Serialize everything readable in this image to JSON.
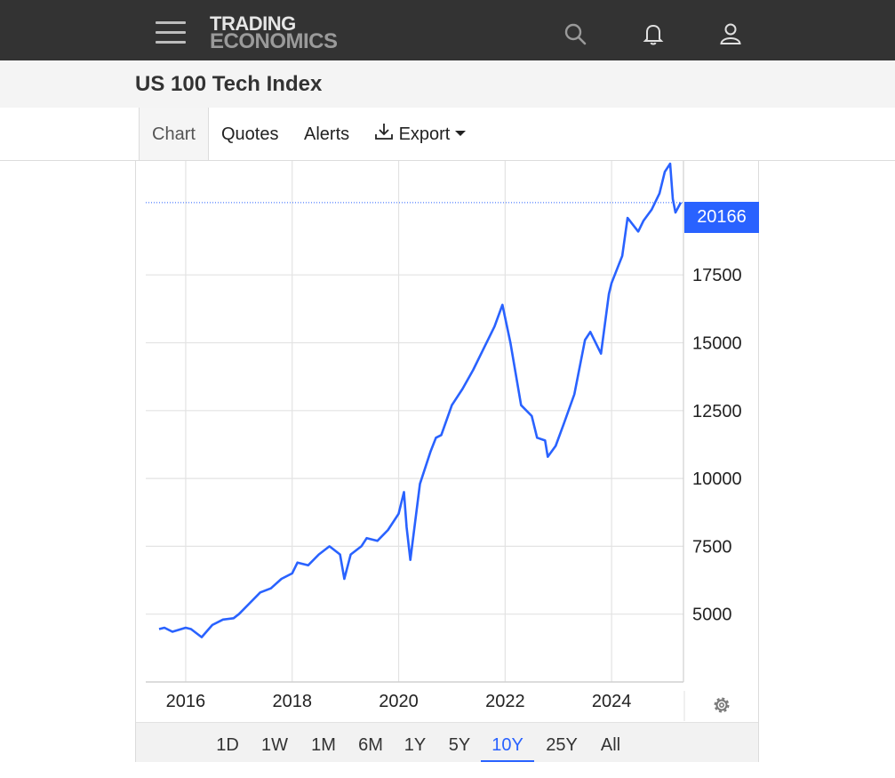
{
  "header": {
    "logo_line1": "TRADING",
    "logo_line2": "ECONOMICS"
  },
  "page": {
    "title": "US 100 Tech Index"
  },
  "tabs": [
    {
      "label": "Chart",
      "active": true
    },
    {
      "label": "Quotes"
    },
    {
      "label": "Alerts"
    },
    {
      "label": "Export"
    }
  ],
  "ranges": [
    "1D",
    "1W",
    "1M",
    "6M",
    "1Y",
    "5Y",
    "10Y",
    "25Y",
    "All"
  ],
  "active_range": "10Y",
  "colors": {
    "topbar": "#333333",
    "line": "#2962ff",
    "badge": "#2962ff"
  },
  "chart_data": {
    "type": "line",
    "current_value": "20166",
    "x": [
      2015.5,
      2015.6,
      2015.75,
      2016.0,
      2016.1,
      2016.3,
      2016.5,
      2016.7,
      2016.9,
      2017.0,
      2017.2,
      2017.4,
      2017.6,
      2017.8,
      2018.0,
      2018.1,
      2018.3,
      2018.5,
      2018.7,
      2018.9,
      2018.98,
      2019.1,
      2019.3,
      2019.4,
      2019.6,
      2019.8,
      2020.0,
      2020.1,
      2020.15,
      2020.22,
      2020.4,
      2020.6,
      2020.7,
      2020.8,
      2021.0,
      2021.2,
      2021.4,
      2021.6,
      2021.8,
      2021.95,
      2022.1,
      2022.3,
      2022.5,
      2022.6,
      2022.75,
      2022.8,
      2022.95,
      2023.1,
      2023.3,
      2023.5,
      2023.6,
      2023.8,
      2023.95,
      2024.0,
      2024.2,
      2024.3,
      2024.5,
      2024.6,
      2024.75,
      2024.9,
      2025.0,
      2025.1,
      2025.15,
      2025.2,
      2025.3
    ],
    "y": [
      4450,
      4500,
      4350,
      4500,
      4450,
      4150,
      4600,
      4800,
      4850,
      5000,
      5400,
      5800,
      5950,
      6300,
      6500,
      6900,
      6800,
      7200,
      7500,
      7200,
      6300,
      7200,
      7500,
      7800,
      7700,
      8100,
      8700,
      9500,
      8200,
      7000,
      9800,
      11000,
      11500,
      11600,
      12700,
      13300,
      14000,
      14800,
      15600,
      16400,
      15000,
      12700,
      12300,
      11500,
      11400,
      10800,
      11200,
      12000,
      13100,
      15100,
      15400,
      14600,
      16800,
      17200,
      18200,
      19600,
      19100,
      19500,
      19900,
      20500,
      21300,
      21600,
      20300,
      19800,
      20166
    ],
    "ylim": [
      2500,
      21700
    ],
    "xlim": [
      2015.25,
      2025.35
    ],
    "y_ticks": [
      "5000",
      "7500",
      "10000",
      "12500",
      "15000",
      "17500"
    ],
    "x_ticks": [
      "2016",
      "2018",
      "2020",
      "2022",
      "2024"
    ],
    "grid": true
  }
}
